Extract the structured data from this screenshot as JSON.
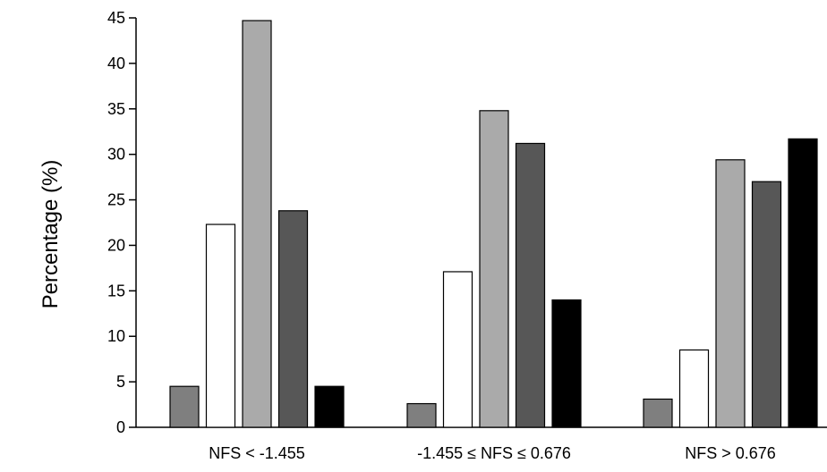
{
  "chart_data": {
    "type": "bar",
    "title": "",
    "xlabel": "",
    "ylabel": "Percentage (%)",
    "ylim": [
      0,
      45
    ],
    "yticks": [
      0,
      5,
      10,
      15,
      20,
      25,
      30,
      35,
      40,
      45
    ],
    "grid": false,
    "legend": "none",
    "categories": [
      "NFS < -1.455",
      "-1.455 ≤ NFS ≤ 0.676",
      "NFS > 0.676"
    ],
    "series": [
      {
        "color": "#7f7f7f",
        "values": [
          4.5,
          2.6,
          3.1
        ]
      },
      {
        "color": "#ffffff",
        "values": [
          22.3,
          17.1,
          8.5
        ]
      },
      {
        "color": "#aaaaaa",
        "values": [
          44.7,
          34.8,
          29.4
        ]
      },
      {
        "color": "#575757",
        "values": [
          23.8,
          31.2,
          27.0
        ]
      },
      {
        "color": "#000000",
        "values": [
          4.5,
          14.0,
          31.7
        ]
      }
    ]
  }
}
